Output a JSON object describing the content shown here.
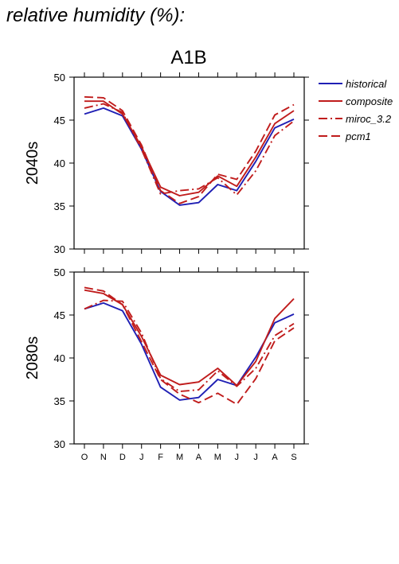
{
  "figure_title": "relative humidity (%):",
  "scenario_title": "A1B",
  "months": [
    "O",
    "N",
    "D",
    "J",
    "F",
    "M",
    "A",
    "M",
    "J",
    "J",
    "A",
    "S"
  ],
  "colors": {
    "historical": "#1f1fb4",
    "model": "#c01c1c"
  },
  "legend": [
    {
      "key": "historical",
      "label": "historical",
      "color": "#1f1fb4",
      "dash": "solid"
    },
    {
      "key": "composite",
      "label": "composite",
      "color": "#c01c1c",
      "dash": "solid"
    },
    {
      "key": "miroc",
      "label": "miroc_3.2",
      "color": "#c01c1c",
      "dash": "dashdot"
    },
    {
      "key": "pcm1",
      "label": "pcm1",
      "color": "#c01c1c",
      "dash": "dash"
    }
  ],
  "chart_data": [
    {
      "type": "line",
      "row_label": "2040s",
      "categories": [
        "O",
        "N",
        "D",
        "J",
        "F",
        "M",
        "A",
        "M",
        "J",
        "J",
        "A",
        "S"
      ],
      "ylim": [
        30,
        50
      ],
      "yticks": [
        30,
        35,
        40,
        45,
        50
      ],
      "grid": false,
      "series": [
        {
          "name": "historical",
          "style": "solid",
          "color": "#1f1fb4",
          "values": [
            45.7,
            46.4,
            45.5,
            41.6,
            36.7,
            35.1,
            35.4,
            37.5,
            36.8,
            40.2,
            44.1,
            45.1
          ]
        },
        {
          "name": "composite",
          "style": "solid",
          "color": "#c01c1c",
          "values": [
            47.2,
            47.2,
            45.7,
            41.9,
            37.2,
            36.2,
            36.6,
            38.5,
            37.3,
            40.7,
            44.6,
            46.1
          ]
        },
        {
          "name": "miroc_3.2",
          "style": "dashdot",
          "color": "#c01c1c",
          "values": [
            46.4,
            46.9,
            45.9,
            41.6,
            36.4,
            36.8,
            37.0,
            38.3,
            36.3,
            39.1,
            43.2,
            44.9
          ]
        },
        {
          "name": "pcm1",
          "style": "dash",
          "color": "#c01c1c",
          "values": [
            47.7,
            47.6,
            46.1,
            42.1,
            36.8,
            35.3,
            36.1,
            38.7,
            38.1,
            41.4,
            45.6,
            46.8
          ]
        }
      ]
    },
    {
      "type": "line",
      "row_label": "2080s",
      "categories": [
        "O",
        "N",
        "D",
        "J",
        "F",
        "M",
        "A",
        "M",
        "J",
        "J",
        "A",
        "S"
      ],
      "ylim": [
        30,
        50
      ],
      "yticks": [
        30,
        35,
        40,
        45,
        50
      ],
      "grid": false,
      "series": [
        {
          "name": "historical",
          "style": "solid",
          "color": "#1f1fb4",
          "values": [
            45.7,
            46.4,
            45.5,
            41.6,
            36.6,
            35.1,
            35.4,
            37.5,
            36.8,
            40.1,
            44.1,
            45.1
          ]
        },
        {
          "name": "composite",
          "style": "solid",
          "color": "#c01c1c",
          "values": [
            47.9,
            47.5,
            46.2,
            42.5,
            38.0,
            36.9,
            37.2,
            38.8,
            36.8,
            39.6,
            44.6,
            46.9
          ]
        },
        {
          "name": "miroc_3.2",
          "style": "dashdot",
          "color": "#c01c1c",
          "values": [
            45.7,
            46.7,
            46.6,
            42.9,
            37.6,
            36.1,
            36.3,
            38.5,
            36.7,
            38.8,
            42.6,
            44.0
          ]
        },
        {
          "name": "pcm1",
          "style": "dash",
          "color": "#c01c1c",
          "values": [
            48.2,
            47.8,
            46.2,
            41.9,
            37.5,
            35.8,
            34.8,
            35.9,
            34.6,
            37.6,
            42.0,
            43.5
          ]
        }
      ]
    }
  ]
}
